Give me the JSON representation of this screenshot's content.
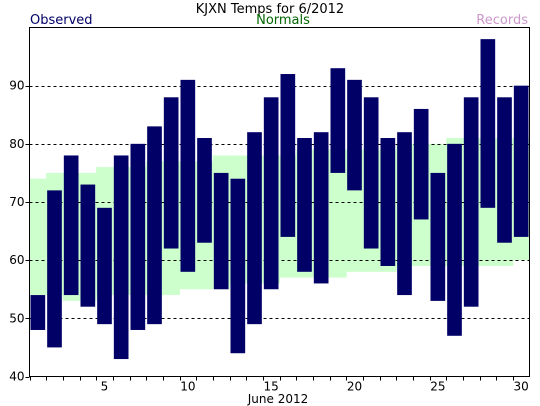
{
  "chart_data": {
    "type": "bar",
    "title": "KJXN Temps for 6/2012",
    "xlabel": "June 2012",
    "ylabel": "",
    "legend": {
      "observed": "Observed",
      "normals": "Normals",
      "records": "Records"
    },
    "colors": {
      "observed": "#000066",
      "normals_band": "#ccffcc",
      "normals_text": "#006600",
      "records_text": "#cc99cc",
      "grid": "#000000"
    },
    "grid": true,
    "ylim": [
      40,
      100
    ],
    "yticks": [
      40,
      50,
      60,
      70,
      80,
      90
    ],
    "xlim": [
      0.5,
      30.5
    ],
    "xticks_labeled": [
      5,
      10,
      15,
      20,
      25,
      30
    ],
    "days": [
      1,
      2,
      3,
      4,
      5,
      6,
      7,
      8,
      9,
      10,
      11,
      12,
      13,
      14,
      15,
      16,
      17,
      18,
      19,
      20,
      21,
      22,
      23,
      24,
      25,
      26,
      27,
      28,
      29,
      30
    ],
    "observed_high": [
      54,
      72,
      78,
      73,
      69,
      78,
      80,
      83,
      88,
      91,
      81,
      75,
      74,
      82,
      88,
      92,
      81,
      82,
      93,
      91,
      88,
      81,
      82,
      86,
      75,
      80,
      88,
      98,
      88,
      90
    ],
    "observed_low": [
      48,
      45,
      54,
      52,
      49,
      43,
      48,
      49,
      62,
      58,
      63,
      55,
      44,
      49,
      55,
      64,
      58,
      56,
      75,
      72,
      62,
      59,
      54,
      67,
      53,
      47,
      52,
      69,
      63,
      64
    ],
    "normal_high": [
      74,
      75,
      75,
      75,
      76,
      76,
      76,
      77,
      77,
      77,
      77,
      78,
      78,
      78,
      78,
      78,
      79,
      79,
      79,
      79,
      79,
      79,
      80,
      80,
      80,
      81,
      81,
      81,
      81,
      81
    ],
    "normal_low": [
      54,
      54,
      53,
      53,
      54,
      54,
      54,
      54,
      54,
      55,
      55,
      55,
      56,
      56,
      56,
      57,
      57,
      57,
      57,
      58,
      58,
      58,
      59,
      59,
      59,
      59,
      59,
      59,
      59,
      60
    ]
  }
}
